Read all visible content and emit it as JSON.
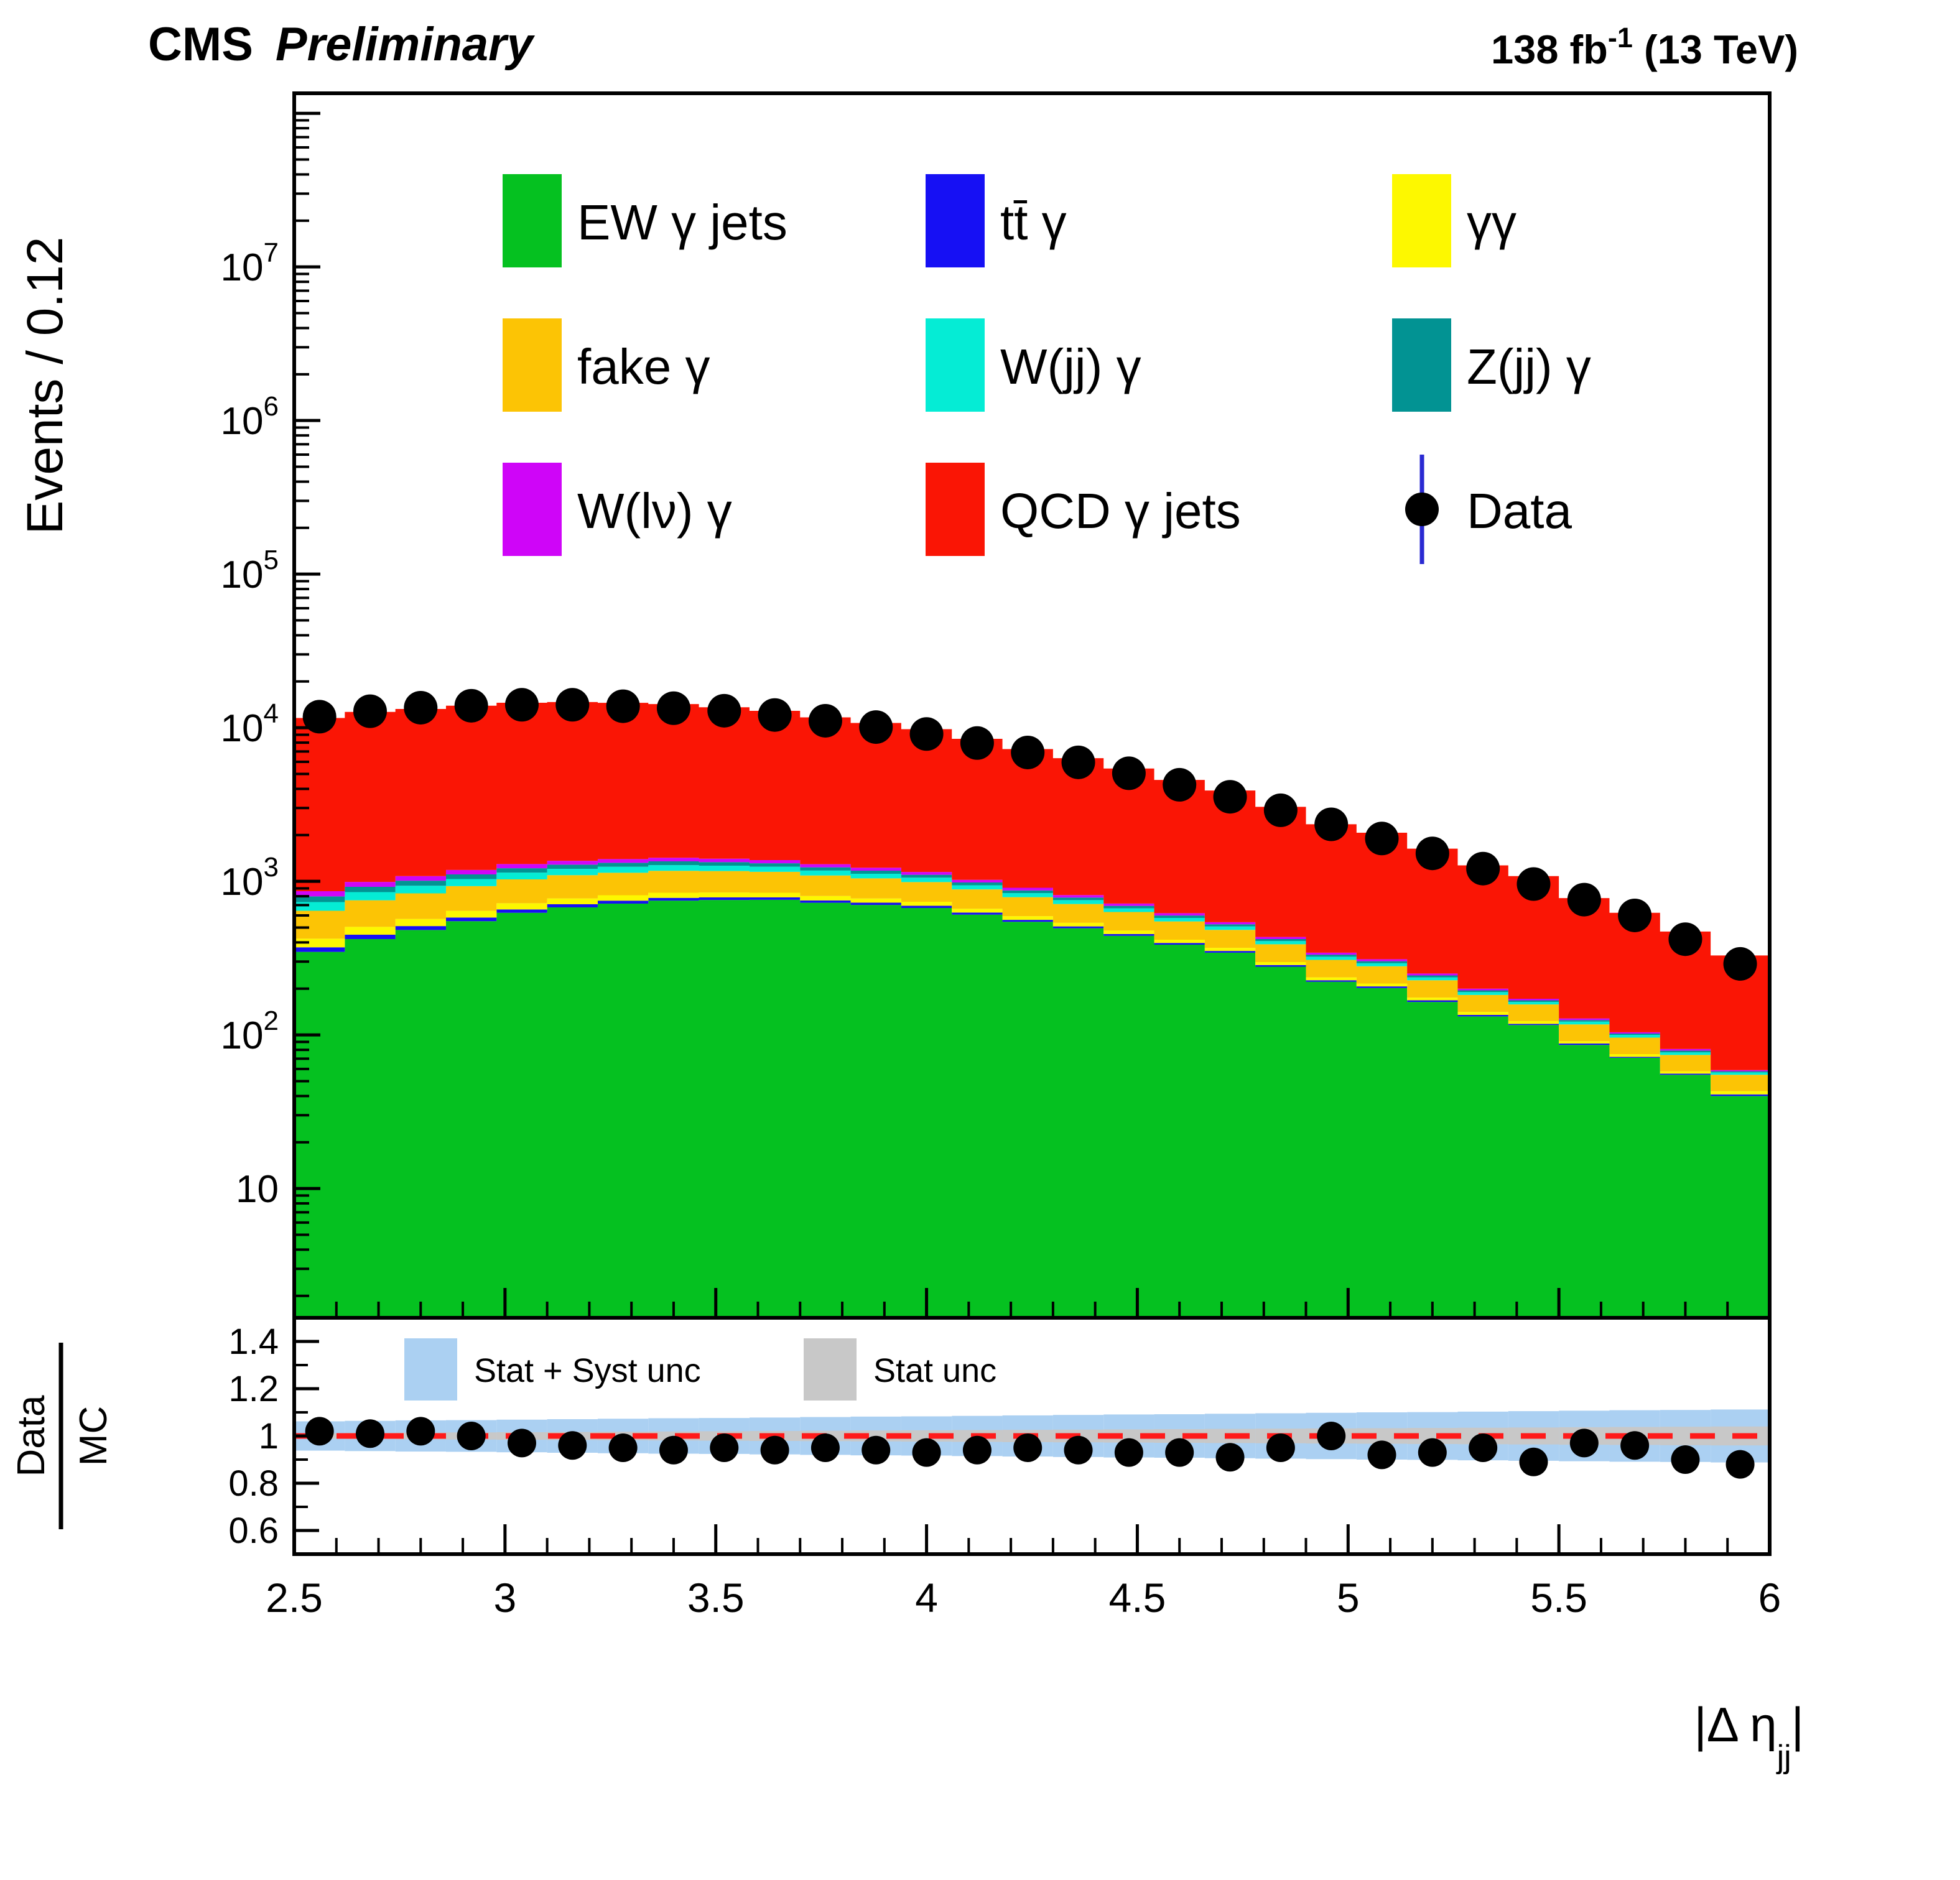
{
  "header": {
    "experiment": "CMS",
    "preliminary": "Preliminary",
    "lumi": "138 fb",
    "lumi_sup": "-1",
    "energy": " (13 TeV)"
  },
  "chart_data": {
    "type": "bar",
    "subtype": "stacked-log-histogram-with-ratio",
    "title": "",
    "ylabel": "Events / 0.12",
    "xlabel_prefix": "|Δ η",
    "xlabel_sub": "jj",
    "xlabel_suffix": "|",
    "xlim": [
      2.5,
      6.0
    ],
    "ylim": [
      1.44,
      135000000
    ],
    "x_start": 2.5,
    "bin_width": 0.12,
    "n_bins": 29,
    "xticks": [
      2.5,
      3,
      3.5,
      4,
      4.5,
      5,
      5.5,
      6
    ],
    "xtick_labels": [
      "2.5",
      "3",
      "3.5",
      "4",
      "4.5",
      "5",
      "5.5",
      "6"
    ],
    "ytick_exponents": [
      1,
      2,
      3,
      4,
      5,
      6,
      7
    ],
    "grid": false,
    "legend_position": "top-inside",
    "series": [
      {
        "name": "EW γ jets",
        "color": "#05c120",
        "values": [
          347,
          421,
          482,
          550,
          624,
          677,
          716,
          749,
          756,
          758,
          725,
          702,
          671,
          607,
          545,
          495,
          442,
          387,
          343,
          278,
          222,
          202,
          164,
          132,
          116,
          86,
          71,
          55,
          40
        ]
      },
      {
        "name": "tt̄ γ",
        "color": "#1610f4",
        "values": [
          25,
          28,
          29,
          31,
          32,
          32,
          32,
          31,
          30,
          28,
          26,
          24,
          22,
          19,
          16,
          14,
          12,
          10,
          9,
          7,
          5,
          5,
          4,
          3,
          2,
          2,
          1,
          1,
          1
        ]
      },
      {
        "name": "γγ",
        "color": "#fdf800",
        "values": [
          51,
          56,
          58,
          61,
          64,
          65,
          64,
          63,
          60,
          57,
          51,
          47,
          43,
          37,
          32,
          28,
          24,
          20,
          17,
          13,
          10,
          9,
          7,
          6,
          5,
          3,
          3,
          2,
          2
        ]
      },
      {
        "name": "fake γ",
        "color": "#fcc405",
        "values": [
          220,
          248,
          266,
          288,
          310,
          322,
          325,
          328,
          320,
          310,
          289,
          272,
          253,
          223,
          196,
          175,
          153,
          131,
          114,
          91,
          71,
          64,
          52,
          41,
          35,
          26,
          21,
          16,
          12
        ]
      },
      {
        "name": "W(jj) γ",
        "color": "#05ecd5",
        "values": [
          90,
          98,
          101,
          105,
          109,
          109,
          107,
          104,
          98,
          92,
          83,
          75,
          67,
          57,
          49,
          42,
          36,
          30,
          25,
          19,
          15,
          13,
          10,
          8,
          6,
          5,
          4,
          3,
          2
        ]
      },
      {
        "name": "Z(jj) γ",
        "color": "#029393",
        "values": [
          65,
          70,
          73,
          75,
          78,
          78,
          76,
          74,
          70,
          65,
          59,
          53,
          47,
          40,
          35,
          30,
          25,
          21,
          17,
          13,
          10,
          9,
          7,
          5,
          4,
          3,
          2,
          2,
          1
        ]
      },
      {
        "name": "W(lν) γ",
        "color": "#cf05f8",
        "values": [
          65,
          70,
          73,
          75,
          78,
          78,
          76,
          74,
          70,
          65,
          59,
          53,
          47,
          40,
          35,
          30,
          25,
          21,
          17,
          13,
          10,
          9,
          7,
          5,
          4,
          3,
          2,
          2,
          1
        ]
      },
      {
        "name": "QCD γ jets",
        "color": "#fa1505",
        "values": [
          10710,
          11680,
          12160,
          12720,
          13250,
          13330,
          13130,
          12840,
          12180,
          11500,
          10390,
          9510,
          8630,
          7440,
          6350,
          5520,
          4710,
          3950,
          3360,
          2620,
          2010,
          1760,
          1380,
          1070,
          910,
          650,
          520,
          390,
          270
        ]
      }
    ],
    "data_points": {
      "name": "Data",
      "marker_color": "#000000",
      "legend_errorbar_color": "#2a2ad2",
      "values": [
        11800,
        12800,
        13500,
        13900,
        14100,
        14100,
        13800,
        13400,
        12900,
        12100,
        11100,
        10100,
        9100,
        7950,
        6900,
        5950,
        5050,
        4250,
        3550,
        2900,
        2350,
        1900,
        1520,
        1210,
        960,
        760,
        600,
        420,
        290
      ]
    },
    "ratio": {
      "numerator_label": "Data",
      "denominator_label": "MC",
      "ylim": [
        0.5,
        1.5
      ],
      "ytick_labels": [
        "0.6",
        "0.8",
        "1",
        "1.2",
        "1.4"
      ],
      "yticks": [
        0.6,
        0.8,
        1.0,
        1.2,
        1.4
      ],
      "reference_line": 1.0,
      "reference_line_color": "#ff1a1a",
      "values": [
        1.02,
        1.01,
        1.02,
        1.0,
        0.97,
        0.96,
        0.95,
        0.94,
        0.95,
        0.94,
        0.95,
        0.94,
        0.93,
        0.94,
        0.95,
        0.94,
        0.93,
        0.93,
        0.91,
        0.95,
        1.0,
        0.92,
        0.93,
        0.95,
        0.89,
        0.97,
        0.96,
        0.9,
        0.88
      ],
      "stat_syst_half_width": [
        0.062,
        0.064,
        0.066,
        0.067,
        0.069,
        0.071,
        0.073,
        0.075,
        0.076,
        0.078,
        0.08,
        0.082,
        0.083,
        0.085,
        0.087,
        0.089,
        0.091,
        0.092,
        0.094,
        0.096,
        0.098,
        0.1,
        0.101,
        0.103,
        0.105,
        0.107,
        0.109,
        0.11,
        0.112
      ],
      "stat_half_width": [
        0.012,
        0.013,
        0.014,
        0.015,
        0.016,
        0.017,
        0.018,
        0.019,
        0.02,
        0.021,
        0.022,
        0.023,
        0.024,
        0.025,
        0.026,
        0.027,
        0.028,
        0.029,
        0.03,
        0.031,
        0.032,
        0.033,
        0.034,
        0.035,
        0.036,
        0.037,
        0.038,
        0.039,
        0.04
      ],
      "band_legend": [
        {
          "label": "Stat + Syst unc",
          "color": "#abd0f2"
        },
        {
          "label": "Stat unc",
          "color": "#c8c8c8"
        }
      ]
    }
  }
}
